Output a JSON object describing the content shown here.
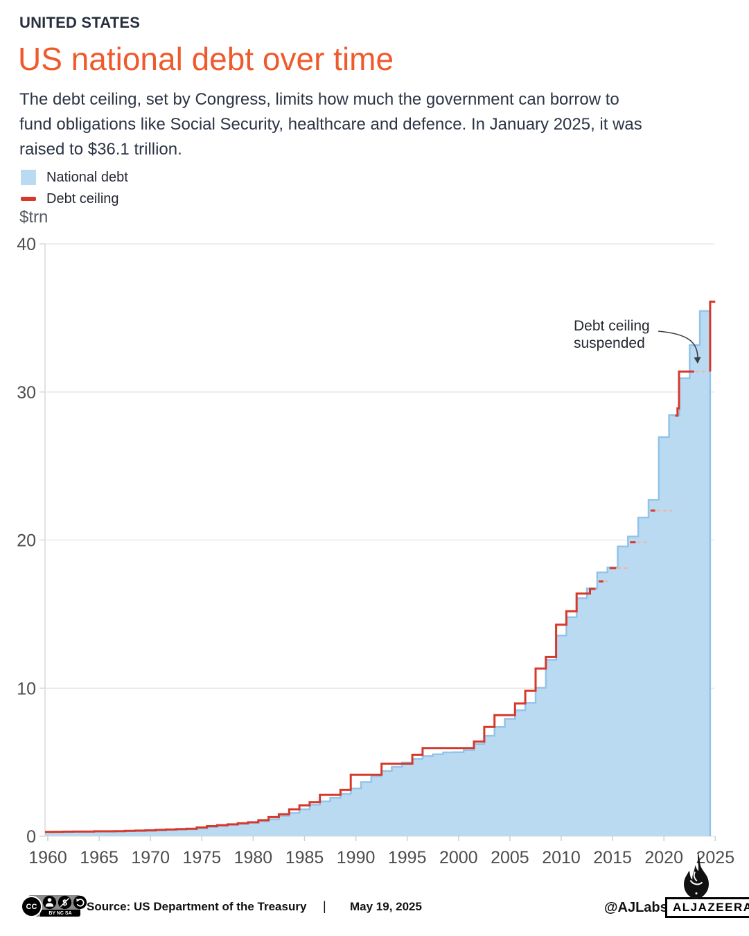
{
  "header": {
    "kicker": "UNITED STATES",
    "title": "US national debt over time",
    "description": "The debt ceiling, set by Congress, limits how much the government can borrow to\nfund obligations like Social Security, healthcare and defence. In January 2025, it was\nraised to $36.1 trillion."
  },
  "legend": {
    "items": [
      {
        "label": "National debt",
        "swatch": "area",
        "color": "#B9DAF1"
      },
      {
        "label": "Debt ceiling",
        "swatch": "line",
        "color": "#D6382B"
      }
    ]
  },
  "axis_unit": "$trn",
  "annotation": {
    "text": "Debt ceiling\nsuspended"
  },
  "footer": {
    "license_caption": "BY NC SA",
    "cc_label": "CC",
    "source": "Source: US Department of the Treasury",
    "separator": "|",
    "date": "May 19, 2025",
    "credit": "@AJLabs",
    "brand": "ALJAZEERA"
  },
  "chart_data": {
    "type": "area",
    "title": "US national debt over time",
    "ylabel": "$trn",
    "xlabel": "",
    "ylim": [
      0,
      40
    ],
    "yticks": [
      0,
      10,
      20,
      30,
      40
    ],
    "xticks": [
      1960,
      1965,
      1970,
      1975,
      1980,
      1985,
      1990,
      1995,
      2000,
      2005,
      2010,
      2015,
      2020,
      2025
    ],
    "grid": true,
    "legend_position": "top-left",
    "colors": {
      "area_fill": "#B9DAF1",
      "area_stroke": "#93C3E8",
      "ceiling": "#D6382B",
      "suspended_dash": "#F2B3A7",
      "grid": "#e4e4e4",
      "axis": "#d9d9d9",
      "tick_text": "#4d4d4d"
    },
    "series": [
      {
        "name": "National debt",
        "type": "step-area",
        "points": [
          [
            1960,
            0.29
          ],
          [
            1961,
            0.29
          ],
          [
            1962,
            0.3
          ],
          [
            1963,
            0.31
          ],
          [
            1964,
            0.31
          ],
          [
            1965,
            0.32
          ],
          [
            1966,
            0.32
          ],
          [
            1967,
            0.33
          ],
          [
            1968,
            0.35
          ],
          [
            1969,
            0.35
          ],
          [
            1970,
            0.37
          ],
          [
            1971,
            0.4
          ],
          [
            1972,
            0.43
          ],
          [
            1973,
            0.46
          ],
          [
            1974,
            0.47
          ],
          [
            1975,
            0.53
          ],
          [
            1976,
            0.62
          ],
          [
            1977,
            0.7
          ],
          [
            1978,
            0.77
          ],
          [
            1979,
            0.83
          ],
          [
            1980,
            0.91
          ],
          [
            1981,
            1.0
          ],
          [
            1982,
            1.14
          ],
          [
            1983,
            1.38
          ],
          [
            1984,
            1.57
          ],
          [
            1985,
            1.82
          ],
          [
            1986,
            2.13
          ],
          [
            1987,
            2.35
          ],
          [
            1988,
            2.6
          ],
          [
            1989,
            2.86
          ],
          [
            1990,
            3.23
          ],
          [
            1991,
            3.67
          ],
          [
            1992,
            4.06
          ],
          [
            1993,
            4.41
          ],
          [
            1994,
            4.69
          ],
          [
            1995,
            4.97
          ],
          [
            1996,
            5.22
          ],
          [
            1997,
            5.41
          ],
          [
            1998,
            5.53
          ],
          [
            1999,
            5.66
          ],
          [
            2000,
            5.67
          ],
          [
            2001,
            5.81
          ],
          [
            2002,
            6.23
          ],
          [
            2003,
            6.78
          ],
          [
            2004,
            7.38
          ],
          [
            2005,
            7.93
          ],
          [
            2006,
            8.51
          ],
          [
            2007,
            9.01
          ],
          [
            2008,
            10.02
          ],
          [
            2009,
            11.91
          ],
          [
            2010,
            13.56
          ],
          [
            2011,
            14.79
          ],
          [
            2012,
            16.07
          ],
          [
            2013,
            16.74
          ],
          [
            2014,
            17.82
          ],
          [
            2015,
            18.15
          ],
          [
            2016,
            19.57
          ],
          [
            2017,
            20.24
          ],
          [
            2018,
            21.52
          ],
          [
            2019,
            22.72
          ],
          [
            2020,
            26.95
          ],
          [
            2021,
            28.43
          ],
          [
            2022,
            30.93
          ],
          [
            2023,
            33.17
          ],
          [
            2024,
            35.46
          ]
        ]
      },
      {
        "name": "Debt ceiling",
        "type": "step-line",
        "segments": [
          [
            [
              1960,
              0.29
            ],
            [
              1961,
              0.3
            ],
            [
              1962,
              0.31
            ],
            [
              1963,
              0.32
            ],
            [
              1964,
              0.32
            ],
            [
              1965,
              0.33
            ],
            [
              1966,
              0.33
            ],
            [
              1967,
              0.34
            ],
            [
              1968,
              0.36
            ],
            [
              1969,
              0.38
            ],
            [
              1970,
              0.4
            ],
            [
              1971,
              0.43
            ],
            [
              1972,
              0.46
            ],
            [
              1973,
              0.48
            ],
            [
              1974,
              0.5
            ],
            [
              1975,
              0.6
            ],
            [
              1976,
              0.68
            ],
            [
              1977,
              0.75
            ],
            [
              1978,
              0.8
            ],
            [
              1979,
              0.88
            ],
            [
              1980,
              0.94
            ],
            [
              1981,
              1.08
            ],
            [
              1982,
              1.29
            ],
            [
              1983,
              1.49
            ],
            [
              1984,
              1.82
            ],
            [
              1985,
              2.08
            ],
            [
              1986,
              2.3
            ],
            [
              1987,
              2.8
            ],
            [
              1988,
              2.8
            ],
            [
              1989,
              3.12
            ],
            [
              1990,
              4.15
            ],
            [
              1991,
              4.15
            ],
            [
              1992,
              4.15
            ],
            [
              1993,
              4.9
            ],
            [
              1994,
              4.9
            ],
            [
              1995,
              4.9
            ],
            [
              1996,
              5.5
            ],
            [
              1997,
              5.95
            ],
            [
              1998,
              5.95
            ],
            [
              1999,
              5.95
            ],
            [
              2000,
              5.95
            ],
            [
              2001,
              5.95
            ],
            [
              2002,
              6.4
            ],
            [
              2003,
              7.38
            ],
            [
              2004,
              8.18
            ],
            [
              2005,
              8.18
            ],
            [
              2006,
              8.97
            ],
            [
              2007,
              9.82
            ],
            [
              2008,
              11.32
            ],
            [
              2009,
              12.1
            ],
            [
              2010,
              14.29
            ],
            [
              2011,
              15.19
            ],
            [
              2012,
              16.39
            ],
            [
              2013.3,
              16.7
            ],
            [
              2013.85,
              16.7
            ]
          ],
          [
            [
              2014.15,
              17.21
            ],
            [
              2014.6,
              17.21
            ]
          ],
          [
            [
              2015.2,
              18.11
            ],
            [
              2015.85,
              18.11
            ]
          ],
          [
            [
              2017.2,
              19.85
            ],
            [
              2017.75,
              19.85
            ]
          ],
          [
            [
              2019.2,
              21.99
            ],
            [
              2019.65,
              21.99
            ]
          ],
          [
            [
              2021.6,
              28.4
            ],
            [
              2021.82,
              28.89
            ],
            [
              2021.97,
              31.38
            ],
            [
              2023.45,
              31.38
            ]
          ],
          [
            [
              2025,
              31.38
            ],
            [
              2025,
              36.1
            ],
            [
              2025.5,
              36.1
            ]
          ]
        ]
      }
    ],
    "annotation": {
      "text": "Debt ceiling suspended",
      "points_to": {
        "year": 2023.8,
        "value": 32.0
      }
    }
  }
}
